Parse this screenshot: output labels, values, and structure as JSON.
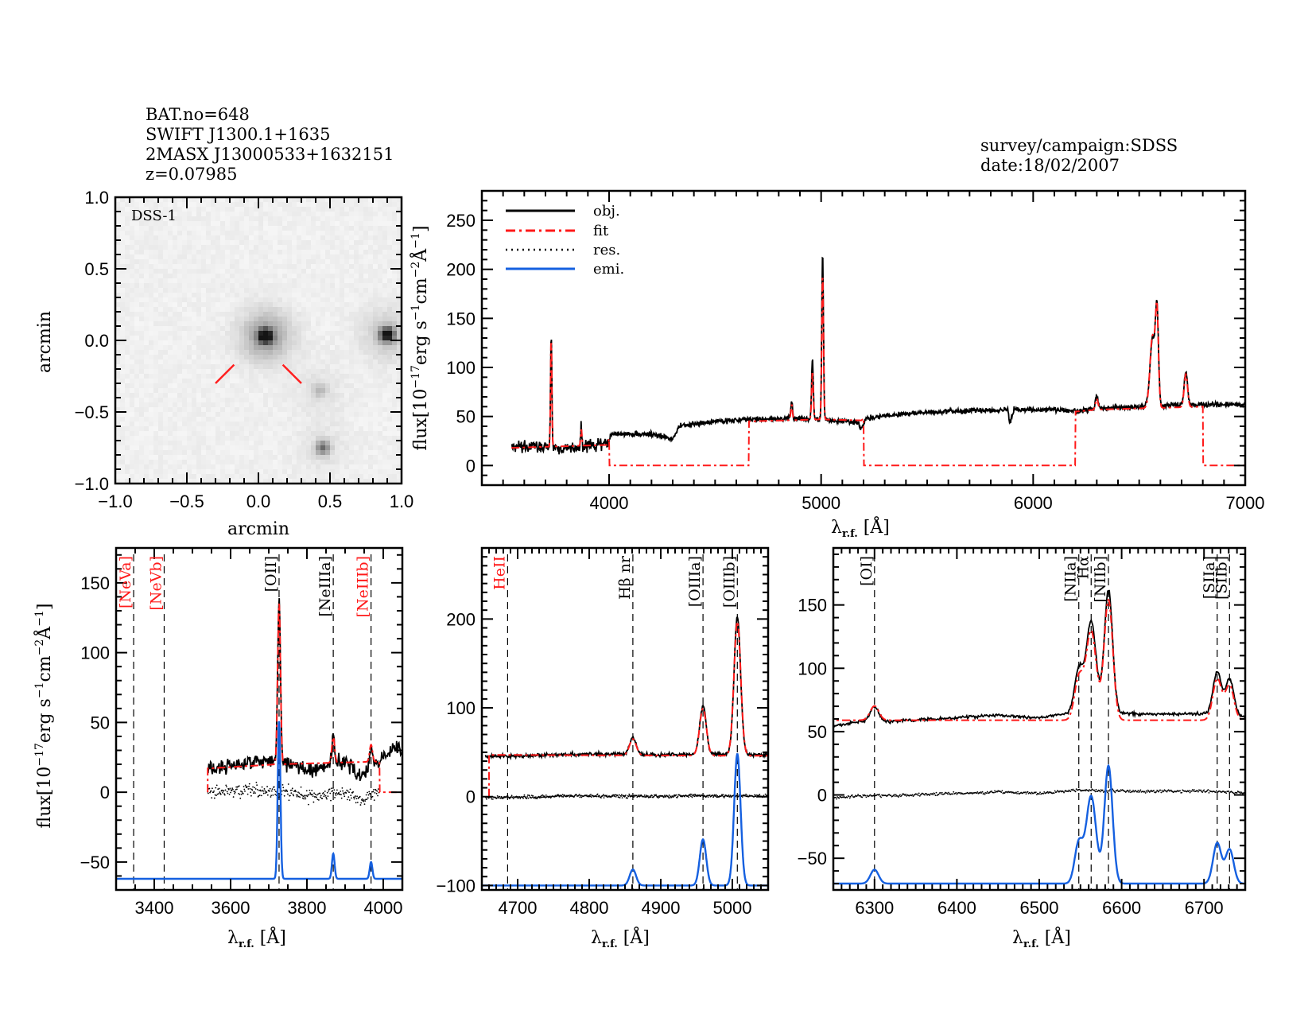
{
  "header": {
    "left_lines": [
      "BAT.no=648",
      "SWIFT J1300.1+1635",
      "2MASX J13000533+1632151",
      "z=0.07985"
    ],
    "right_lines": [
      "survey/campaign:SDSS",
      "date:18/02/2007"
    ]
  },
  "colors": {
    "obj": "#000000",
    "fit": "#ff1a1a",
    "res": "#000000",
    "emi": "#1560e0",
    "marker": "#ff2020"
  },
  "chart_data": [
    {
      "id": "image",
      "type": "heatmap",
      "title": "DSS-1",
      "xlabel": "arcmin",
      "ylabel": "arcmin",
      "xlim": [
        -1.0,
        1.0
      ],
      "ylim": [
        -1.0,
        1.0
      ],
      "xticks": [
        "−1.0",
        "−0.5",
        "0.0",
        "0.5",
        "1.0"
      ],
      "yticks": [
        "−1.0",
        "−0.5",
        "0.0",
        "0.5",
        "1.0"
      ],
      "sources": [
        {
          "x": 0.05,
          "y": 0.03,
          "peak": 1.0,
          "halo": 0.12
        },
        {
          "x": 0.9,
          "y": 0.04,
          "peak": 0.95,
          "halo": 0.06
        },
        {
          "x": 0.45,
          "y": -0.75,
          "peak": 0.5,
          "halo": 0.02
        },
        {
          "x": 0.43,
          "y": -0.35,
          "peak": 0.2,
          "halo": 0.02
        }
      ],
      "target_marker": {
        "x": 0.0,
        "y": -0.05
      }
    },
    {
      "id": "full-spectrum",
      "type": "line",
      "xlabel": "λ r.f. [Å]",
      "ylabel": "flux[10⁻¹⁷erg s⁻¹cm⁻²Å⁻¹]",
      "xlim": [
        3400,
        7000
      ],
      "ylim": [
        -20,
        280
      ],
      "xticks": [
        4000,
        5000,
        6000,
        7000
      ],
      "yticks": [
        0,
        50,
        100,
        150,
        200,
        250
      ],
      "legend": {
        "position": "top-left",
        "entries": [
          "obj.",
          "fit",
          "res.",
          "emi."
        ]
      },
      "continuum_obj": [
        [
          3540,
          18
        ],
        [
          3700,
          20
        ],
        [
          3800,
          17
        ],
        [
          3900,
          20
        ],
        [
          3990,
          22
        ],
        [
          4010,
          32
        ],
        [
          4200,
          32
        ],
        [
          4300,
          27
        ],
        [
          4330,
          40
        ],
        [
          4500,
          45
        ],
        [
          4650,
          47
        ],
        [
          4900,
          48
        ],
        [
          5050,
          46
        ],
        [
          5170,
          44
        ],
        [
          5190,
          38
        ],
        [
          5210,
          48
        ],
        [
          5400,
          53
        ],
        [
          5700,
          56
        ],
        [
          5880,
          57
        ],
        [
          5890,
          42
        ],
        [
          5910,
          57
        ],
        [
          6100,
          57
        ],
        [
          6200,
          55
        ],
        [
          6300,
          58
        ],
        [
          6500,
          60
        ],
        [
          6700,
          62
        ],
        [
          7000,
          62
        ]
      ],
      "continuum_fit": [
        [
          3540,
          18
        ],
        [
          3990,
          21
        ],
        [
          4010,
          33
        ],
        [
          4300,
          35
        ],
        [
          4660,
          45
        ],
        [
          5000,
          47
        ],
        [
          5190,
          46
        ],
        [
          5210,
          50
        ],
        [
          6200,
          55
        ],
        [
          6300,
          57
        ],
        [
          6800,
          60
        ],
        [
          7000,
          60
        ]
      ],
      "fit_windows": [
        [
          3540,
          4000
        ],
        [
          4660,
          5200
        ],
        [
          6200,
          6800
        ]
      ],
      "lines": [
        {
          "name": "[OII]",
          "wave": 3727,
          "obj_peak": 135,
          "fit_peak": 130,
          "sigma": 3
        },
        {
          "name": "[NeIII]",
          "wave": 3869,
          "obj_peak": 40,
          "fit_peak": 37,
          "sigma": 3
        },
        {
          "name": "Hβ",
          "wave": 4861,
          "obj_peak": 65,
          "fit_peak": 62,
          "sigma": 4
        },
        {
          "name": "[OIIIa]",
          "wave": 4959,
          "obj_peak": 110,
          "fit_peak": 95,
          "sigma": 4
        },
        {
          "name": "[OIIIb]",
          "wave": 5007,
          "obj_peak": 217,
          "fit_peak": 195,
          "sigma": 4
        },
        {
          "name": "[OI]",
          "wave": 6300,
          "obj_peak": 71,
          "fit_peak": 68,
          "sigma": 6
        },
        {
          "name": "Hα+[NII]a",
          "wave": 6563,
          "obj_peak": 130,
          "fit_peak": 132,
          "sigma": 12
        },
        {
          "name": "[NII]b",
          "wave": 6584,
          "obj_peak": 152,
          "fit_peak": 150,
          "sigma": 7
        },
        {
          "name": "[SII]",
          "wave": 6720,
          "obj_peak": 96,
          "fit_peak": 93,
          "sigma": 8
        }
      ]
    },
    {
      "id": "zoom-oii",
      "type": "line",
      "xlabel": "λ r.f. [Å]",
      "ylabel": "flux[10⁻¹⁷erg s⁻¹cm⁻²Å⁻¹]",
      "xlim": [
        3300,
        4050
      ],
      "ylim": [
        -70,
        175
      ],
      "xticks": [
        3400,
        3600,
        3800,
        4000
      ],
      "yticks": [
        -50,
        0,
        50,
        100,
        150
      ],
      "data_start": 3540,
      "fit_end": 3990,
      "continuum_obj": [
        [
          3540,
          17
        ],
        [
          3600,
          19
        ],
        [
          3700,
          22
        ],
        [
          3760,
          20
        ],
        [
          3820,
          15
        ],
        [
          3860,
          20
        ],
        [
          3900,
          22
        ],
        [
          3940,
          12
        ],
        [
          3990,
          23
        ],
        [
          4010,
          30
        ],
        [
          4050,
          32
        ]
      ],
      "continuum_fit": [
        [
          3540,
          17
        ],
        [
          3720,
          20
        ],
        [
          3990,
          22
        ]
      ],
      "emi_baseline": -62,
      "line_markers": [
        {
          "label": "[NeVa]",
          "wave": 3346,
          "color": "red"
        },
        {
          "label": "[NeVb]",
          "wave": 3426,
          "color": "red"
        },
        {
          "label": "[OII]",
          "wave": 3727,
          "color": "black"
        },
        {
          "label": "[NeIIIa]",
          "wave": 3869,
          "color": "black"
        },
        {
          "label": "[NeIIIb]",
          "wave": 3968,
          "color": "red"
        }
      ],
      "emission_lines": [
        {
          "wave": 3727,
          "amp": 113,
          "sigma": 3.5
        },
        {
          "wave": 3869,
          "amp": 18,
          "sigma": 3.5
        },
        {
          "wave": 3968,
          "amp": 12,
          "sigma": 3.5
        }
      ]
    },
    {
      "id": "zoom-oiii",
      "type": "line",
      "xlabel": "λ r.f. [Å]",
      "xlim": [
        4650,
        5050
      ],
      "ylim": [
        -105,
        280
      ],
      "xticks": [
        4700,
        4800,
        4900,
        5000
      ],
      "yticks": [
        -100,
        0,
        100,
        200
      ],
      "data_start": 4655,
      "fit_start": 4660,
      "continuum_obj": [
        [
          4655,
          45
        ],
        [
          4700,
          46
        ],
        [
          4800,
          48
        ],
        [
          4900,
          47
        ],
        [
          4950,
          48
        ],
        [
          5050,
          47
        ]
      ],
      "continuum_fit": [
        [
          4660,
          47
        ],
        [
          5050,
          46
        ]
      ],
      "emi_baseline": -100,
      "line_markers": [
        {
          "label": "HeII",
          "wave": 4686,
          "color": "red"
        },
        {
          "label": "Hβ nr",
          "wave": 4861,
          "color": "black"
        },
        {
          "label": "[OIIIa]",
          "wave": 4959,
          "color": "black"
        },
        {
          "label": "[OIIIb]",
          "wave": 5007,
          "color": "black"
        }
      ],
      "emission_lines": [
        {
          "wave": 4861,
          "amp": 18,
          "sigma": 4.5
        },
        {
          "wave": 4959,
          "amp": 52,
          "sigma": 4.5
        },
        {
          "wave": 5007,
          "amp": 148,
          "sigma": 4.5
        }
      ]
    },
    {
      "id": "zoom-halpha",
      "type": "line",
      "xlabel": "λ r.f. [Å]",
      "xlim": [
        6250,
        6750
      ],
      "ylim": [
        -75,
        195
      ],
      "xticks": [
        6300,
        6400,
        6500,
        6600,
        6700
      ],
      "yticks": [
        -50,
        0,
        50,
        100,
        150
      ],
      "data_start": 6250,
      "continuum_obj": [
        [
          6250,
          55
        ],
        [
          6290,
          58
        ],
        [
          6320,
          58
        ],
        [
          6400,
          61
        ],
        [
          6450,
          63
        ],
        [
          6500,
          61
        ],
        [
          6540,
          65
        ],
        [
          6620,
          64
        ],
        [
          6700,
          64
        ],
        [
          6750,
          62
        ]
      ],
      "continuum_fit": [
        [
          6250,
          59
        ],
        [
          6750,
          59
        ]
      ],
      "emi_baseline": -70,
      "line_markers": [
        {
          "label": "[OI]",
          "wave": 6300,
          "color": "black"
        },
        {
          "label": "[NIIa]",
          "wave": 6548,
          "color": "black"
        },
        {
          "label": "Hα",
          "wave": 6563,
          "color": "black"
        },
        {
          "label": "[NIIb]",
          "wave": 6584,
          "color": "black"
        },
        {
          "label": "[SIIa]",
          "wave": 6716,
          "color": "black"
        },
        {
          "label": "[SIIb]",
          "wave": 6731,
          "color": "black"
        }
      ],
      "emission_lines": [
        {
          "wave": 6300,
          "amp": 11,
          "sigma": 5
        },
        {
          "wave": 6548,
          "amp": 32,
          "sigma": 5
        },
        {
          "wave": 6563,
          "amp": 69,
          "sigma": 6
        },
        {
          "wave": 6584,
          "amp": 93,
          "sigma": 5
        },
        {
          "wave": 6716,
          "amp": 32,
          "sigma": 5
        },
        {
          "wave": 6731,
          "amp": 27,
          "sigma": 5
        }
      ]
    }
  ]
}
